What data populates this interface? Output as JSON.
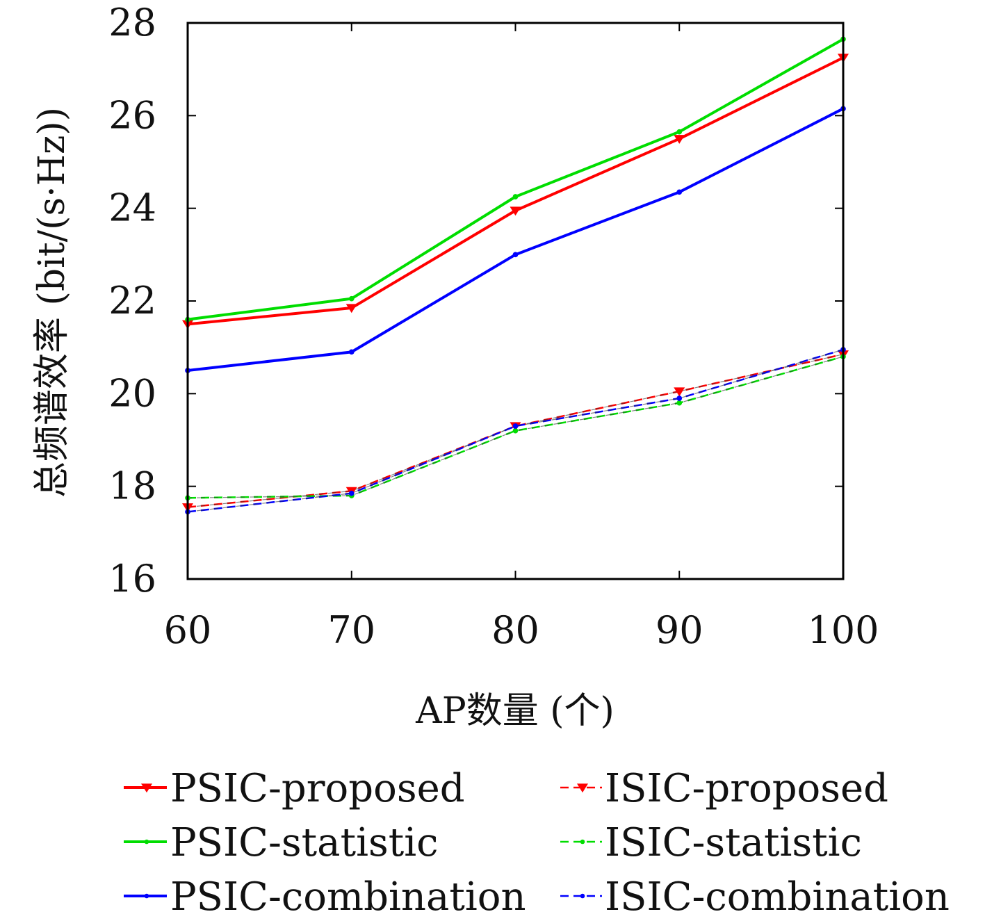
{
  "chart_data": {
    "type": "line",
    "xlabel": "AP数量 (个)",
    "ylabel": "总频谱效率 (bit/(s·Hz))",
    "x": [
      60,
      70,
      80,
      90,
      100
    ],
    "xlim": [
      60,
      100
    ],
    "ylim": [
      16,
      28
    ],
    "xticks": [
      "60",
      "70",
      "80",
      "90",
      "100"
    ],
    "yticks": [
      "16",
      "18",
      "20",
      "22",
      "24",
      "26",
      "28"
    ],
    "grid": false,
    "legend_position": "bottom",
    "series": [
      {
        "name": "PSIC-proposed",
        "values": [
          21.5,
          21.85,
          23.95,
          25.5,
          27.25
        ],
        "color": "#ff0000",
        "dash": "solid",
        "marker": "triangle-down"
      },
      {
        "name": "ISIC-proposed",
        "values": [
          17.55,
          17.9,
          19.3,
          20.05,
          20.85
        ],
        "color": "#ff0000",
        "dash": "dashed",
        "marker": "triangle-down"
      },
      {
        "name": "PSIC-statistic",
        "values": [
          21.6,
          22.05,
          24.25,
          25.65,
          27.65
        ],
        "color": "#00dd00",
        "dash": "solid",
        "marker": "dot"
      },
      {
        "name": "ISIC-statistic",
        "values": [
          17.75,
          17.8,
          19.2,
          19.8,
          20.8
        ],
        "color": "#00dd00",
        "dash": "dashed",
        "marker": "dot"
      },
      {
        "name": "PSIC-combination",
        "values": [
          20.5,
          20.9,
          23.0,
          24.35,
          26.15
        ],
        "color": "#0000ff",
        "dash": "solid",
        "marker": "dot"
      },
      {
        "name": "ISIC-combination",
        "values": [
          17.45,
          17.85,
          19.3,
          19.9,
          20.95
        ],
        "color": "#0000ff",
        "dash": "dashed",
        "marker": "dot"
      }
    ]
  }
}
